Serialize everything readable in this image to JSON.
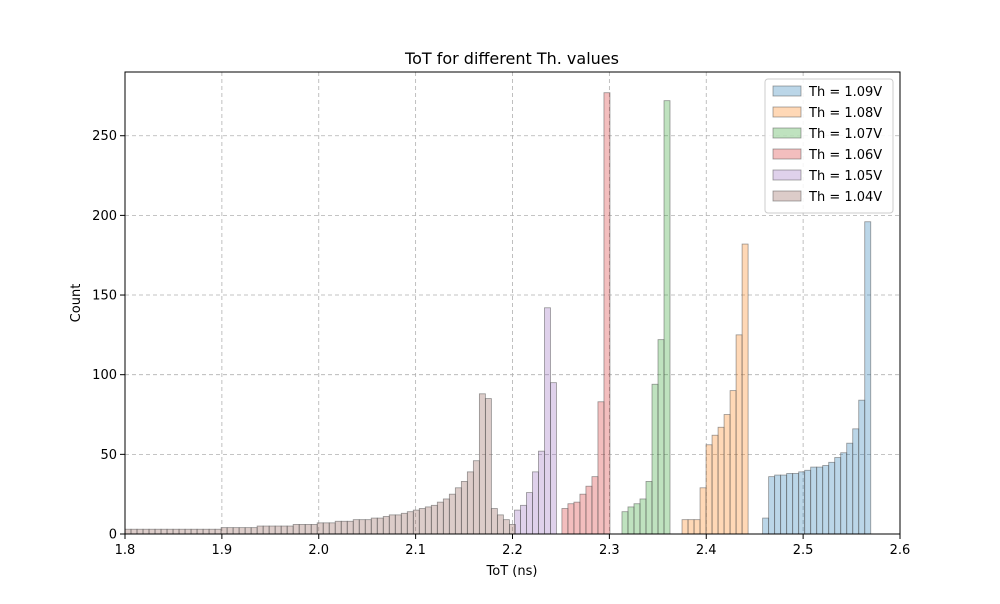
{
  "chart_data": {
    "type": "histogram",
    "title": "ToT for different Th. values",
    "xlabel": "ToT (ns)",
    "ylabel": "Count",
    "xlim": [
      1.8,
      2.6
    ],
    "ylim": [
      0,
      290
    ],
    "xticks": [
      "1.8",
      "1.9",
      "2.0",
      "2.1",
      "2.2",
      "2.3",
      "2.4",
      "2.5",
      "2.6"
    ],
    "yticks": [
      "0",
      "50",
      "100",
      "150",
      "200",
      "250"
    ],
    "grid": true,
    "legend_position": "top-right",
    "bin_width": 0.0062,
    "series": [
      {
        "name": "Th = 1.09V",
        "color": "#1f77b4",
        "bins": [
          [
            2.4582,
            10
          ],
          [
            2.4644,
            36
          ],
          [
            2.4706,
            37
          ],
          [
            2.4768,
            37
          ],
          [
            2.483,
            38
          ],
          [
            2.4892,
            38
          ],
          [
            2.4954,
            39
          ],
          [
            2.5016,
            40
          ],
          [
            2.5078,
            42
          ],
          [
            2.514,
            42
          ],
          [
            2.5202,
            43
          ],
          [
            2.5264,
            45
          ],
          [
            2.5326,
            48
          ],
          [
            2.5388,
            51
          ],
          [
            2.545,
            57
          ],
          [
            2.5512,
            66
          ],
          [
            2.5574,
            84
          ],
          [
            2.5636,
            196
          ]
        ]
      },
      {
        "name": "Th = 1.08V",
        "color": "#ff7f0e",
        "bins": [
          [
            2.375,
            9
          ],
          [
            2.3812,
            9
          ],
          [
            2.3874,
            9
          ],
          [
            2.3936,
            29
          ],
          [
            2.3998,
            56
          ],
          [
            2.406,
            62
          ],
          [
            2.4122,
            67
          ],
          [
            2.4184,
            75
          ],
          [
            2.4246,
            90
          ],
          [
            2.4308,
            125
          ],
          [
            2.437,
            182
          ]
        ]
      },
      {
        "name": "Th = 1.07V",
        "color": "#2ca02c",
        "bins": [
          [
            2.313,
            14
          ],
          [
            2.3192,
            17
          ],
          [
            2.3254,
            19
          ],
          [
            2.3316,
            22
          ],
          [
            2.3378,
            33
          ],
          [
            2.344,
            94
          ],
          [
            2.3502,
            122
          ],
          [
            2.3564,
            272
          ]
        ]
      },
      {
        "name": "Th = 1.06V",
        "color": "#d62728",
        "bins": [
          [
            2.251,
            16
          ],
          [
            2.2572,
            19
          ],
          [
            2.2634,
            20
          ],
          [
            2.2696,
            25
          ],
          [
            2.2758,
            30
          ],
          [
            2.282,
            36
          ],
          [
            2.2882,
            83
          ],
          [
            2.2944,
            277
          ]
        ]
      },
      {
        "name": "Th = 1.05V",
        "color": "#9467bd",
        "bins": [
          [
            2.202,
            15
          ],
          [
            2.2082,
            18
          ],
          [
            2.2144,
            26
          ],
          [
            2.2206,
            39
          ],
          [
            2.2268,
            52
          ],
          [
            2.233,
            142
          ],
          [
            2.2392,
            95
          ]
        ]
      },
      {
        "name": "Th = 1.04V",
        "color": "#8c564b",
        "bins": [
          [
            1.8,
            3
          ],
          [
            1.8062,
            3
          ],
          [
            1.8124,
            3
          ],
          [
            1.8186,
            3
          ],
          [
            1.8248,
            3
          ],
          [
            1.831,
            3
          ],
          [
            1.8372,
            3
          ],
          [
            1.8434,
            3
          ],
          [
            1.8496,
            3
          ],
          [
            1.8558,
            3
          ],
          [
            1.862,
            3
          ],
          [
            1.8682,
            3
          ],
          [
            1.8744,
            3
          ],
          [
            1.8806,
            3
          ],
          [
            1.8868,
            3
          ],
          [
            1.893,
            3
          ],
          [
            1.8992,
            4
          ],
          [
            1.9054,
            4
          ],
          [
            1.9116,
            4
          ],
          [
            1.9178,
            4
          ],
          [
            1.924,
            4
          ],
          [
            1.9302,
            4
          ],
          [
            1.9364,
            5
          ],
          [
            1.9426,
            5
          ],
          [
            1.9488,
            5
          ],
          [
            1.955,
            5
          ],
          [
            1.9612,
            5
          ],
          [
            1.9674,
            5
          ],
          [
            1.9736,
            6
          ],
          [
            1.9798,
            6
          ],
          [
            1.986,
            6
          ],
          [
            1.9922,
            6
          ],
          [
            1.9984,
            7
          ],
          [
            2.0046,
            7
          ],
          [
            2.0108,
            7
          ],
          [
            2.017,
            8
          ],
          [
            2.0232,
            8
          ],
          [
            2.0294,
            8
          ],
          [
            2.0356,
            9
          ],
          [
            2.0418,
            9
          ],
          [
            2.048,
            9
          ],
          [
            2.0542,
            10
          ],
          [
            2.0604,
            10
          ],
          [
            2.0666,
            11
          ],
          [
            2.0728,
            12
          ],
          [
            2.079,
            12
          ],
          [
            2.0852,
            13
          ],
          [
            2.0914,
            14
          ],
          [
            2.0976,
            15
          ],
          [
            2.1038,
            16
          ],
          [
            2.11,
            17
          ],
          [
            2.1162,
            18
          ],
          [
            2.1224,
            20
          ],
          [
            2.1286,
            22
          ],
          [
            2.1348,
            25
          ],
          [
            2.141,
            29
          ],
          [
            2.1472,
            33
          ],
          [
            2.1534,
            39
          ],
          [
            2.1596,
            46
          ],
          [
            2.1658,
            88
          ],
          [
            2.172,
            85
          ],
          [
            2.1782,
            16
          ],
          [
            2.1844,
            12
          ],
          [
            2.1906,
            9
          ],
          [
            2.1968,
            6
          ]
        ]
      }
    ]
  }
}
